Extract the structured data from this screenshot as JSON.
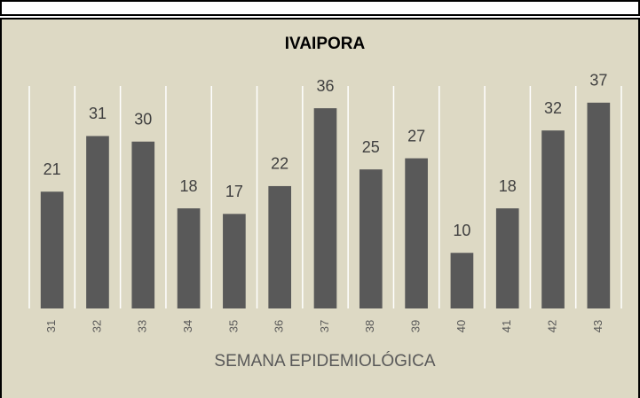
{
  "chart_data": {
    "type": "bar",
    "title": "IVAIPORA",
    "x_label": "SEMANA EPIDEMIOLÓGICA",
    "categories": [
      "31",
      "32",
      "33",
      "34",
      "35",
      "36",
      "37",
      "38",
      "39",
      "40",
      "41",
      "42",
      "43"
    ],
    "values": [
      21,
      31,
      30,
      18,
      17,
      22,
      36,
      25,
      27,
      10,
      18,
      32,
      37
    ],
    "color": "#595959",
    "ylim": [
      0,
      40
    ]
  }
}
